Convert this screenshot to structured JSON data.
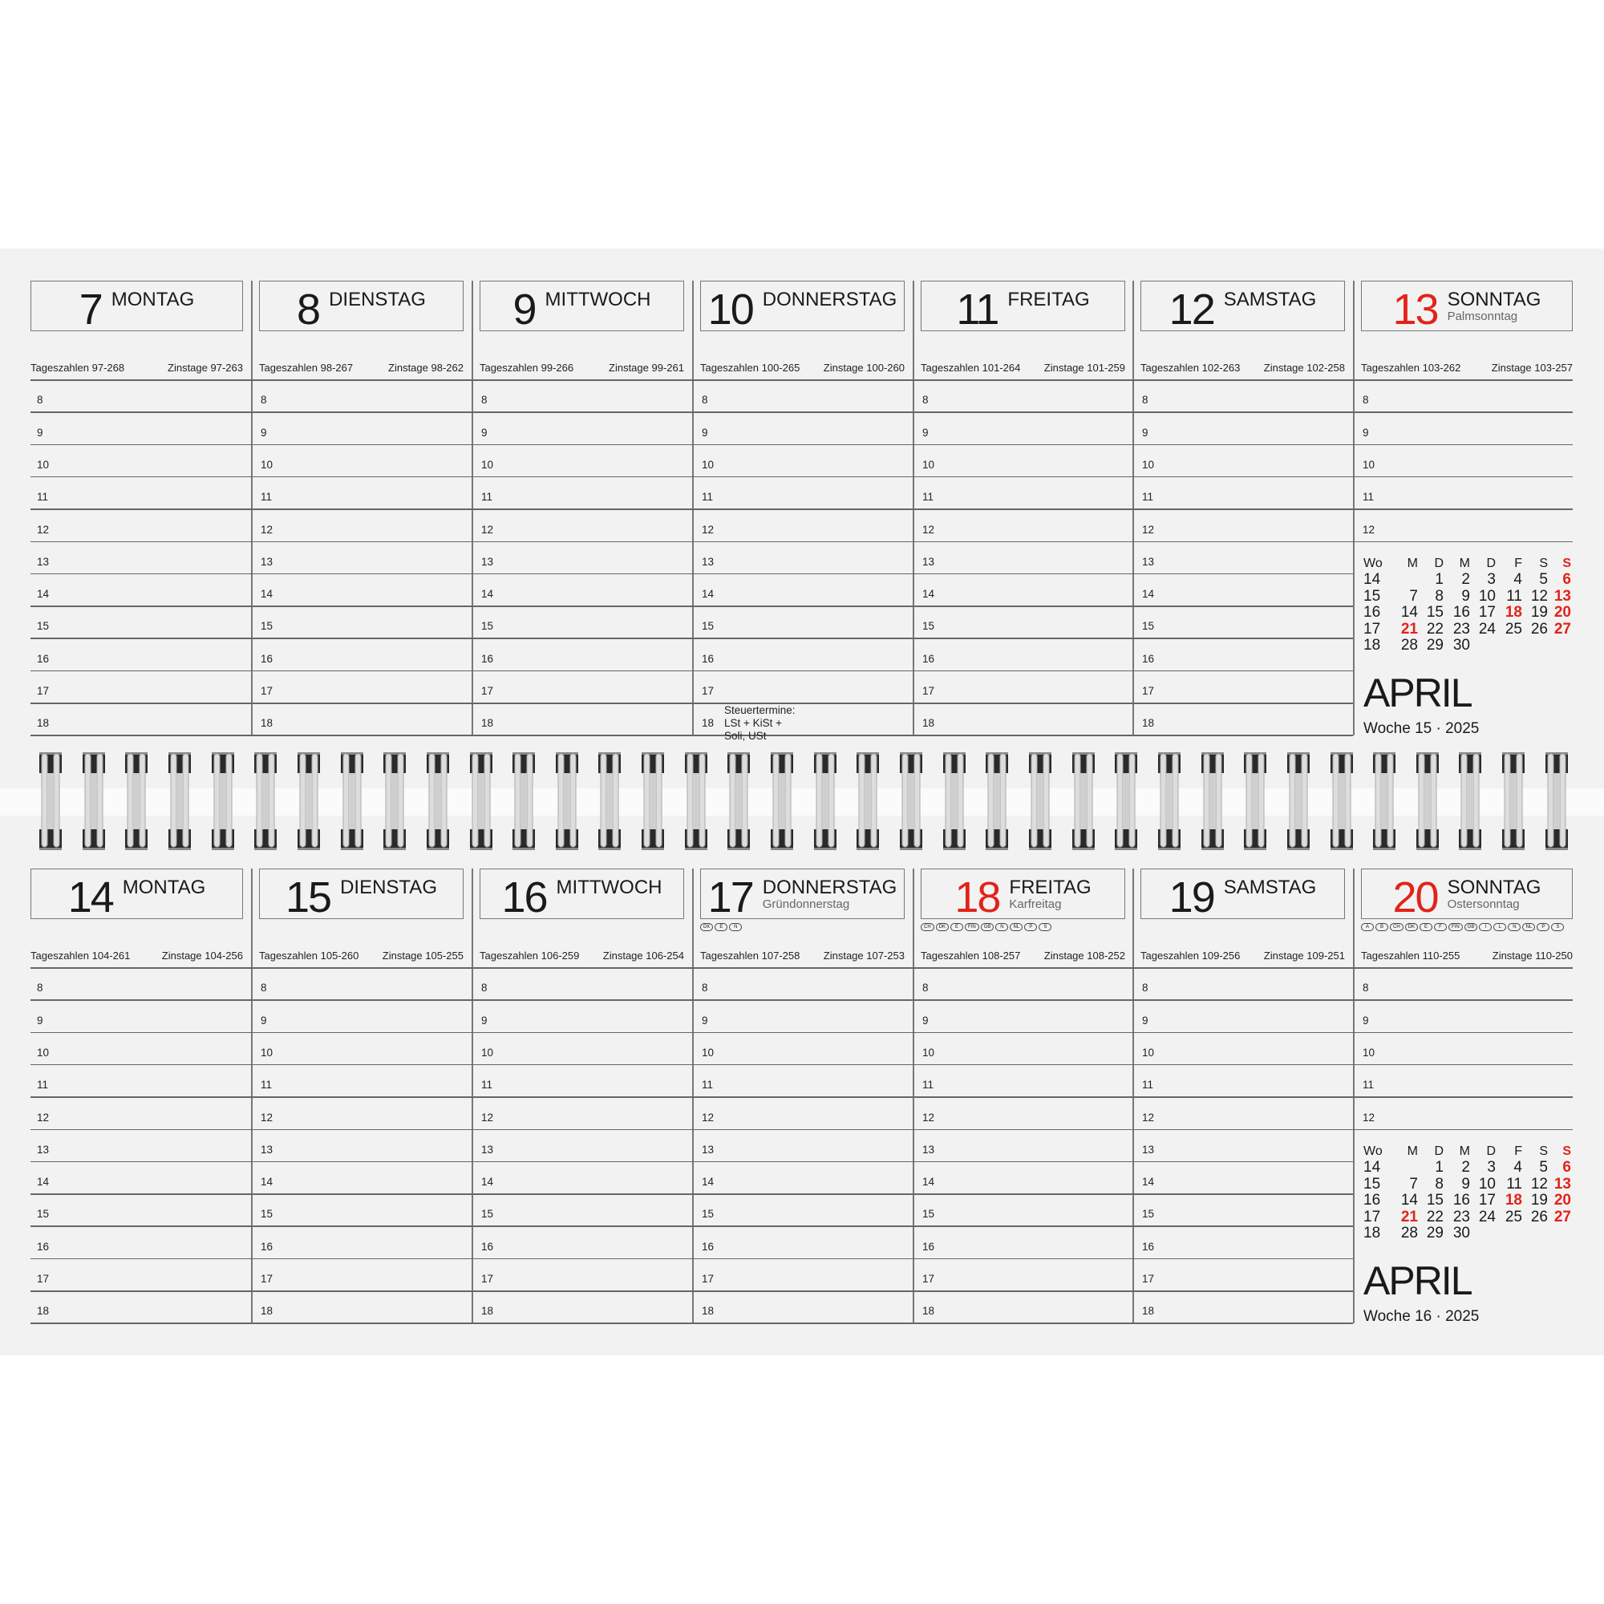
{
  "labels": {
    "tageszahlen": "Tageszahlen",
    "zinstage": "Zinstage",
    "wo": "Wo",
    "weekdays": [
      "M",
      "D",
      "M",
      "D",
      "F",
      "S",
      "S"
    ],
    "woche": "Woche",
    "sep": "·"
  },
  "accent_color": "#e2231a",
  "hours": [
    "8",
    "9",
    "10",
    "11",
    "12",
    "13",
    "14",
    "15",
    "16",
    "17",
    "18"
  ],
  "weeks": [
    {
      "week": "15",
      "year": "2025",
      "month": "APRIL",
      "days": [
        {
          "day": "7",
          "name": "MONTAG",
          "holiday": "",
          "tz": "97-268",
          "zt": "97-263",
          "red": false,
          "badges": []
        },
        {
          "day": "8",
          "name": "DIENSTAG",
          "holiday": "",
          "tz": "98-267",
          "zt": "98-262",
          "red": false,
          "badges": []
        },
        {
          "day": "9",
          "name": "MITTWOCH",
          "holiday": "",
          "tz": "99-266",
          "zt": "99-261",
          "red": false,
          "badges": []
        },
        {
          "day": "10",
          "name": "DONNERSTAG",
          "holiday": "",
          "tz": "100-265",
          "zt": "100-260",
          "red": false,
          "badges": [],
          "note": {
            "hour": "18",
            "lines": [
              "Steuertermine:",
              "LSt + KiSt + Soli, USt"
            ]
          }
        },
        {
          "day": "11",
          "name": "FREITAG",
          "holiday": "",
          "tz": "101-264",
          "zt": "101-259",
          "red": false,
          "badges": []
        },
        {
          "day": "12",
          "name": "SAMSTAG",
          "holiday": "",
          "tz": "102-263",
          "zt": "102-258",
          "red": false,
          "badges": []
        },
        {
          "day": "13",
          "name": "SONNTAG",
          "holiday": "Palmsonntag",
          "tz": "103-262",
          "zt": "103-257",
          "red": true,
          "badges": []
        }
      ]
    },
    {
      "week": "16",
      "year": "2025",
      "month": "APRIL",
      "days": [
        {
          "day": "14",
          "name": "MONTAG",
          "holiday": "",
          "tz": "104-261",
          "zt": "104-256",
          "red": false,
          "badges": []
        },
        {
          "day": "15",
          "name": "DIENSTAG",
          "holiday": "",
          "tz": "105-260",
          "zt": "105-255",
          "red": false,
          "badges": []
        },
        {
          "day": "16",
          "name": "MITTWOCH",
          "holiday": "",
          "tz": "106-259",
          "zt": "106-254",
          "red": false,
          "badges": []
        },
        {
          "day": "17",
          "name": "DONNERSTAG",
          "holiday": "Gründonnerstag",
          "tz": "107-258",
          "zt": "107-253",
          "red": false,
          "badges": [
            "DK",
            "E",
            "N"
          ]
        },
        {
          "day": "18",
          "name": "FREITAG",
          "holiday": "Karfreitag",
          "tz": "108-257",
          "zt": "108-252",
          "red": true,
          "badges": [
            "CH",
            "DK",
            "E",
            "FIN",
            "GB",
            "N",
            "NL",
            "P",
            "S"
          ]
        },
        {
          "day": "19",
          "name": "SAMSTAG",
          "holiday": "",
          "tz": "109-256",
          "zt": "109-251",
          "red": false,
          "badges": []
        },
        {
          "day": "20",
          "name": "SONNTAG",
          "holiday": "Ostersonntag",
          "tz": "110-255",
          "zt": "110-250",
          "red": true,
          "badges": [
            "A",
            "B",
            "CH",
            "DK",
            "E",
            "F",
            "FIN",
            "GB",
            "I",
            "L",
            "N",
            "NL",
            "P",
            "S"
          ]
        }
      ]
    }
  ],
  "mini_calendar": {
    "rows": [
      {
        "wo": "14",
        "cells": [
          "",
          "1",
          "2",
          "3",
          "4",
          "5",
          "6"
        ]
      },
      {
        "wo": "15",
        "cells": [
          "7",
          "8",
          "9",
          "10",
          "11",
          "12",
          "13"
        ]
      },
      {
        "wo": "16",
        "cells": [
          "14",
          "15",
          "16",
          "17",
          "18",
          "19",
          "20"
        ]
      },
      {
        "wo": "17",
        "cells": [
          "21",
          "22",
          "23",
          "24",
          "25",
          "26",
          "27"
        ]
      },
      {
        "wo": "18",
        "cells": [
          "28",
          "29",
          "30",
          "",
          "",
          "",
          ""
        ]
      }
    ],
    "red_dates": [
      "6",
      "13",
      "18",
      "20",
      "21",
      "27"
    ]
  }
}
